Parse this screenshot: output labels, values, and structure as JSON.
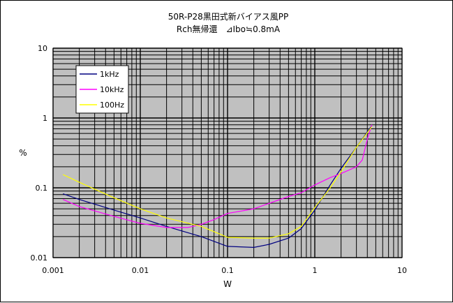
{
  "chart_data": {
    "type": "line",
    "title": "50R-P28黒田式新バイアス風PP",
    "subtitle": "Rch無帰還　⊿Ibo≒0.8mA",
    "xlabel": "W",
    "ylabel": "%",
    "x_scale": "log",
    "y_scale": "log",
    "xlim": [
      0.001,
      10
    ],
    "ylim": [
      0.01,
      10
    ],
    "x_ticks": [
      {
        "value": 0.001,
        "label": "0.001"
      },
      {
        "value": 0.01,
        "label": "0.01"
      },
      {
        "value": 0.1,
        "label": "0.1"
      },
      {
        "value": 1,
        "label": "1"
      },
      {
        "value": 10,
        "label": "10"
      }
    ],
    "y_ticks": [
      {
        "value": 0.01,
        "label": "0.01"
      },
      {
        "value": 0.1,
        "label": "0.1"
      },
      {
        "value": 1,
        "label": "1"
      },
      {
        "value": 10,
        "label": "10"
      }
    ],
    "grid": true,
    "plot_background": "#c0c0c0",
    "legend_position": "top-left",
    "series": [
      {
        "name": "1kHz",
        "color": "#000080",
        "points": [
          [
            0.0013,
            0.082
          ],
          [
            0.002,
            0.068
          ],
          [
            0.005,
            0.048
          ],
          [
            0.01,
            0.037
          ],
          [
            0.02,
            0.028
          ],
          [
            0.05,
            0.02
          ],
          [
            0.1,
            0.0145
          ],
          [
            0.2,
            0.014
          ],
          [
            0.3,
            0.0155
          ],
          [
            0.5,
            0.019
          ],
          [
            0.7,
            0.026
          ],
          [
            1.0,
            0.048
          ],
          [
            1.5,
            0.11
          ],
          [
            2.0,
            0.19
          ],
          [
            3.0,
            0.38
          ],
          [
            4.5,
            0.78
          ]
        ]
      },
      {
        "name": "10kHz",
        "color": "#ff00ff",
        "points": [
          [
            0.0013,
            0.068
          ],
          [
            0.002,
            0.054
          ],
          [
            0.005,
            0.039
          ],
          [
            0.01,
            0.031
          ],
          [
            0.02,
            0.027
          ],
          [
            0.035,
            0.027
          ],
          [
            0.05,
            0.03
          ],
          [
            0.07,
            0.035
          ],
          [
            0.1,
            0.043
          ],
          [
            0.2,
            0.05
          ],
          [
            0.3,
            0.06
          ],
          [
            0.5,
            0.075
          ],
          [
            0.7,
            0.085
          ],
          [
            1.0,
            0.11
          ],
          [
            1.5,
            0.14
          ],
          [
            2.0,
            0.16
          ],
          [
            3.0,
            0.2
          ],
          [
            3.5,
            0.25
          ],
          [
            4.0,
            0.5
          ],
          [
            4.5,
            0.8
          ]
        ]
      },
      {
        "name": "100Hz",
        "color": "#ffff00",
        "points": [
          [
            0.0013,
            0.155
          ],
          [
            0.002,
            0.12
          ],
          [
            0.005,
            0.072
          ],
          [
            0.01,
            0.05
          ],
          [
            0.02,
            0.037
          ],
          [
            0.05,
            0.028
          ],
          [
            0.08,
            0.022
          ],
          [
            0.1,
            0.0195
          ],
          [
            0.2,
            0.019
          ],
          [
            0.3,
            0.019
          ],
          [
            0.5,
            0.022
          ],
          [
            0.7,
            0.028
          ],
          [
            1.0,
            0.052
          ],
          [
            1.5,
            0.1
          ],
          [
            2.0,
            0.17
          ],
          [
            3.0,
            0.38
          ],
          [
            4.5,
            0.75
          ]
        ]
      }
    ]
  }
}
